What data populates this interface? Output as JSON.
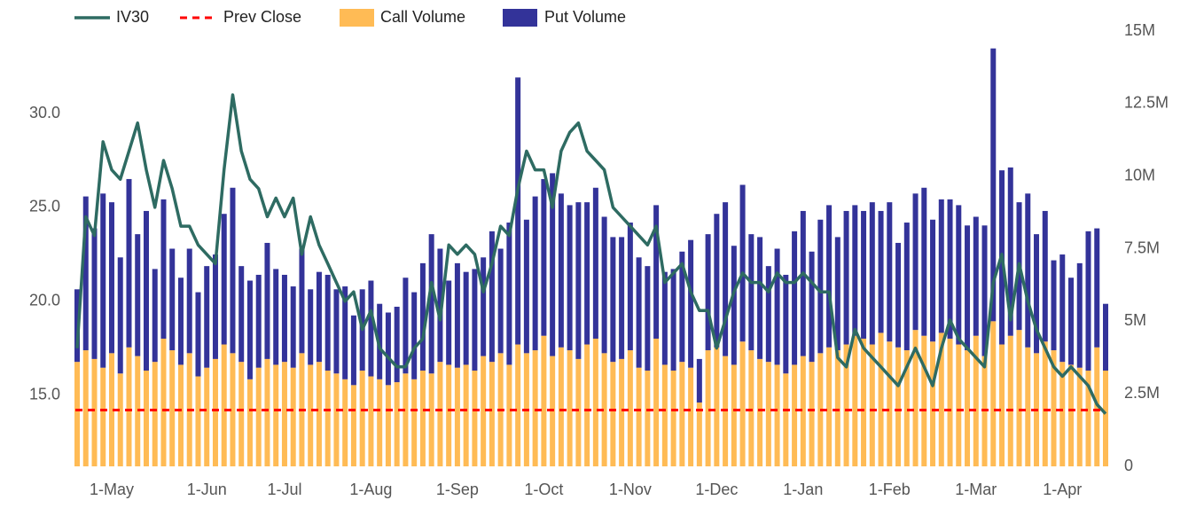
{
  "chart_data": {
    "type": "bar-line",
    "legend": "top-left",
    "categories": [
      null,
      null,
      null,
      null,
      "1-May",
      null,
      null,
      null,
      null,
      null,
      null,
      null,
      null,
      null,
      null,
      "1-Jun",
      null,
      null,
      null,
      null,
      null,
      null,
      null,
      null,
      "1-Jul",
      null,
      null,
      null,
      null,
      null,
      null,
      null,
      null,
      null,
      "1-Aug",
      null,
      null,
      null,
      null,
      null,
      null,
      null,
      null,
      null,
      "1-Sep",
      null,
      null,
      null,
      null,
      null,
      null,
      null,
      null,
      null,
      "1-Oct",
      null,
      null,
      null,
      null,
      null,
      null,
      null,
      null,
      null,
      "1-Nov",
      null,
      null,
      null,
      null,
      null,
      null,
      null,
      null,
      null,
      "1-Dec",
      null,
      null,
      null,
      null,
      null,
      null,
      null,
      null,
      null,
      "1-Jan",
      null,
      null,
      null,
      null,
      null,
      null,
      null,
      null,
      null,
      "1-Feb",
      null,
      null,
      null,
      null,
      null,
      null,
      null,
      null,
      null,
      "1-Mar",
      null,
      null,
      null,
      null,
      null,
      null,
      null,
      null,
      null,
      "1-Apr",
      null,
      null,
      null,
      null,
      null
    ],
    "ylim": [
      11.2,
      34.4
    ],
    "yticks": [
      {
        "value": 15,
        "label": "15.0"
      },
      {
        "value": 20,
        "label": "20.0"
      },
      {
        "value": 25,
        "label": "25.0"
      },
      {
        "value": 30,
        "label": "30.0"
      }
    ],
    "y2lim": [
      0,
      15000000
    ],
    "y2ticks": [
      0,
      {
        "value": 2500000,
        "label": "2.5M"
      },
      {
        "value": 5000000,
        "label": "5M"
      },
      {
        "value": 7500000,
        "label": "7.5M"
      },
      {
        "value": 10000000,
        "label": "10M"
      },
      {
        "value": 12500000,
        "label": "12.5M"
      },
      {
        "value": 15000000,
        "label": "15M"
      }
    ],
    "series": [
      {
        "name": "IV30",
        "kind": "line",
        "color": "#2e6b62",
        "values": [
          17.5,
          24.5,
          23.5,
          28.5,
          27,
          26.5,
          28,
          29.5,
          27,
          25,
          27.5,
          26,
          24,
          24,
          23,
          22.5,
          22,
          27,
          31,
          28,
          26.5,
          26,
          24.5,
          25.5,
          24.5,
          25.5,
          22.5,
          24.5,
          23,
          22,
          21,
          20,
          20.5,
          18.5,
          19.5,
          17.5,
          17,
          16.5,
          16.5,
          17.5,
          18,
          21,
          19,
          23,
          22.5,
          23,
          22.5,
          20.5,
          22,
          24,
          23.5,
          26,
          28,
          27,
          27,
          25,
          28,
          29,
          29.5,
          28,
          27.5,
          27,
          25,
          24.5,
          24,
          23.5,
          23,
          24,
          21,
          21.5,
          22,
          20.5,
          19.5,
          19.5,
          17.5,
          19,
          20.5,
          21.5,
          21,
          21,
          20.5,
          21.5,
          21,
          21,
          21.5,
          21,
          20.5,
          20.5,
          17,
          16.5,
          18.5,
          17.5,
          17,
          16.5,
          16,
          15.5,
          16.5,
          17.5,
          16.5,
          15.5,
          17.5,
          19,
          18,
          17.5,
          17,
          16.5,
          21,
          22.5,
          19,
          22,
          20,
          18.5,
          17.5,
          16.5,
          16,
          16.5,
          16,
          15.5,
          14.5,
          14
        ]
      },
      {
        "name": "Prev Close",
        "kind": "hline",
        "color": "#ff0000",
        "value": 14.2
      },
      {
        "name": "Call Volume",
        "kind": "bar",
        "axis": "y2",
        "color": "#ffbb55",
        "values": [
          3600000.0,
          4000000.0,
          3700000.0,
          3400000.0,
          3900000.0,
          3200000.0,
          4100000.0,
          3800000.0,
          3300000.0,
          3600000.0,
          4400000.0,
          4000000.0,
          3500000.0,
          3900000.0,
          3100000.0,
          3400000.0,
          3700000.0,
          4200000.0,
          3900000.0,
          3600000.0,
          3000000.0,
          3400000.0,
          3700000.0,
          3500000.0,
          3600000.0,
          3400000.0,
          3900000.0,
          3500000.0,
          3600000.0,
          3300000.0,
          3200000.0,
          3000000.0,
          2800000.0,
          3300000.0,
          3100000.0,
          3000000.0,
          2800000.0,
          2900000.0,
          3200000.0,
          3000000.0,
          3300000.0,
          3200000.0,
          3600000.0,
          3500000.0,
          3400000.0,
          3500000.0,
          3300000.0,
          3800000.0,
          3600000.0,
          3900000.0,
          3500000.0,
          4200000.0,
          3900000.0,
          4000000.0,
          4500000.0,
          3800000.0,
          4100000.0,
          4000000.0,
          3700000.0,
          4200000.0,
          4400000.0,
          3900000.0,
          3600000.0,
          3700000.0,
          4000000.0,
          3400000.0,
          3300000.0,
          4400000.0,
          3500000.0,
          3300000.0,
          3600000.0,
          3400000.0,
          2200000.0,
          4000000.0,
          4100000.0,
          3800000.0,
          3500000.0,
          4300000.0,
          4000000.0,
          3700000.0,
          3600000.0,
          3500000.0,
          3200000.0,
          3500000.0,
          3800000.0,
          3600000.0,
          3900000.0,
          4100000.0,
          4000000.0,
          4200000.0,
          4500000.0,
          4400000.0,
          4200000.0,
          4600000.0,
          4300000.0,
          4100000.0,
          4000000.0,
          4700000.0,
          4500000.0,
          4300000.0,
          4600000.0,
          4400000.0,
          4200000.0,
          4000000.0,
          4500000.0,
          3800000.0,
          5000000.0,
          4200000.0,
          4500000.0,
          4700000.0,
          4100000.0,
          3900000.0,
          4300000.0,
          4000000.0,
          3600000.0,
          3500000.0,
          3400000.0,
          3300000.0,
          4100000.0,
          3300000.0
        ]
      },
      {
        "name": "Put Volume",
        "kind": "bar",
        "axis": "y2",
        "color": "#333399",
        "values": [
          2500000.0,
          5300000.0,
          4500000.0,
          6000000.0,
          5200000.0,
          4000000.0,
          5800000.0,
          4200000.0,
          5500000.0,
          3200000.0,
          4800000.0,
          3500000.0,
          3000000.0,
          3600000.0,
          2900000.0,
          3500000.0,
          3600000.0,
          4500000.0,
          5700000.0,
          3300000.0,
          3400000.0,
          3200000.0,
          4000000.0,
          3300000.0,
          3000000.0,
          2800000.0,
          3600000.0,
          2600000.0,
          3100000.0,
          3300000.0,
          2900000.0,
          3200000.0,
          2400000.0,
          2800000.0,
          3300000.0,
          2600000.0,
          2500000.0,
          2600000.0,
          3300000.0,
          3000000.0,
          3700000.0,
          4800000.0,
          3900000.0,
          2900000.0,
          3600000.0,
          3200000.0,
          3500000.0,
          3400000.0,
          4500000.0,
          3600000.0,
          4900000.0,
          9200000.0,
          4600000.0,
          5300000.0,
          5400000.0,
          6300000.0,
          5300000.0,
          5000000.0,
          5400000.0,
          4900000.0,
          5200000.0,
          4700000.0,
          4300000.0,
          4200000.0,
          4400000.0,
          3800000.0,
          3600000.0,
          4600000.0,
          3200000.0,
          3500000.0,
          3800000.0,
          4400000.0,
          1500000.0,
          4000000.0,
          4600000.0,
          5300000.0,
          4100000.0,
          5400000.0,
          4000000.0,
          4200000.0,
          3300000.0,
          4000000.0,
          3400000.0,
          4600000.0,
          5000000.0,
          3800000.0,
          4600000.0,
          4900000.0,
          3900000.0,
          4600000.0,
          4500000.0,
          4400000.0,
          4900000.0,
          4200000.0,
          4800000.0,
          3600000.0,
          4400000.0,
          4700000.0,
          5100000.0,
          4200000.0,
          4600000.0,
          4800000.0,
          4800000.0,
          4300000.0,
          4100000.0,
          4500000.0,
          9400000.0,
          6000000.0,
          5800000.0,
          4400000.0,
          5300000.0,
          4100000.0,
          4500000.0,
          3100000.0,
          3700000.0,
          3000000.0,
          3600000.0,
          4800000.0,
          4100000.0,
          2300000.0
        ]
      }
    ]
  }
}
